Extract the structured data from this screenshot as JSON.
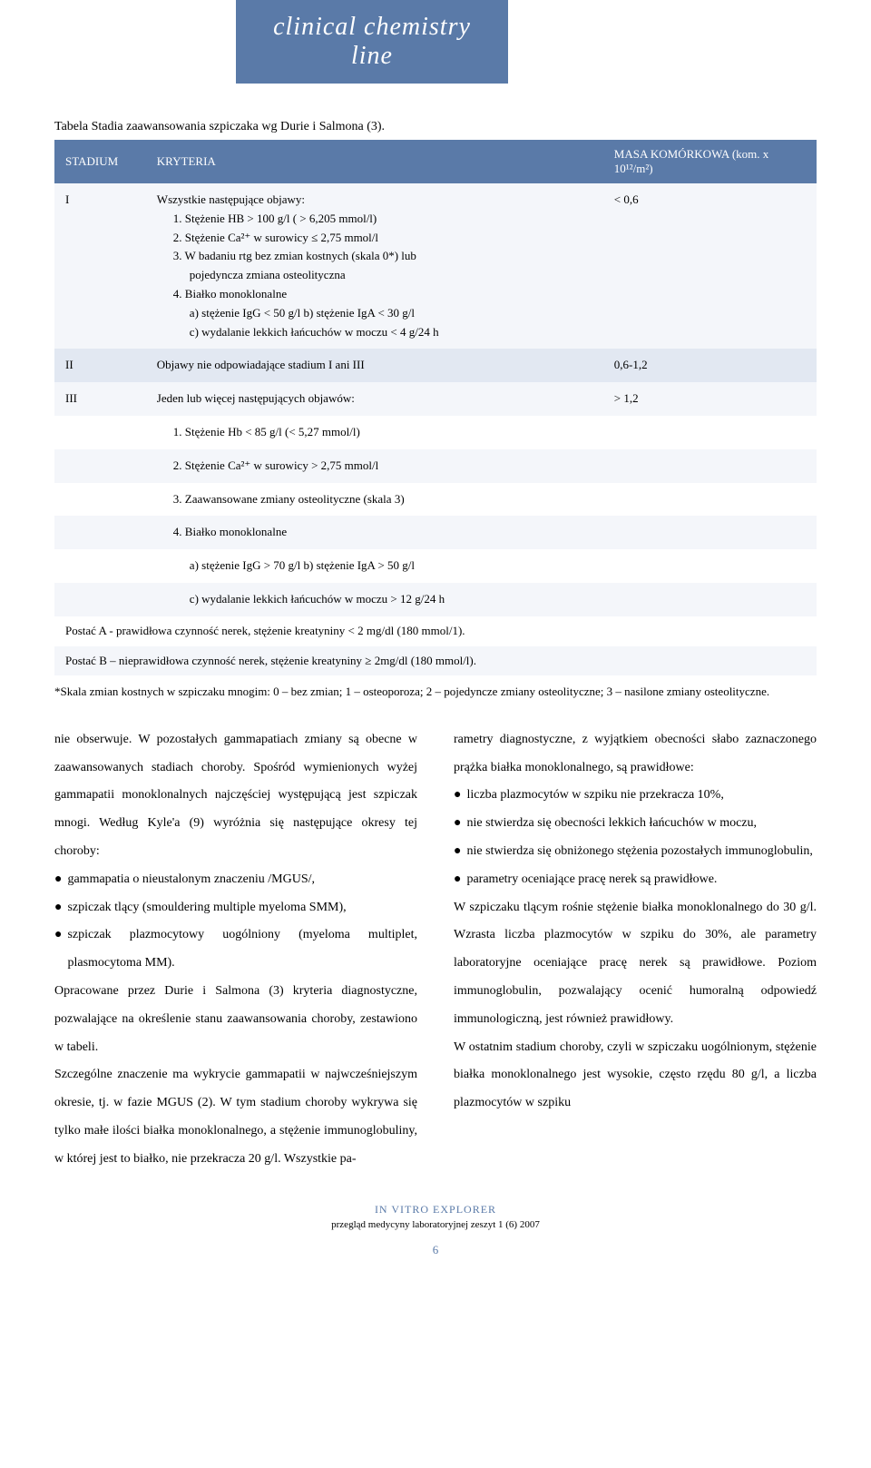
{
  "banner": "clinical chemistry line",
  "tableCaption": "Tabela Stadia zaawansowania szpiczaka wg Durie i Salmona (3).",
  "columns": {
    "c1": "STADIUM",
    "c2": "KRYTERIA",
    "c3": "MASA KOMÓRKOWA (kom. x 10¹²/m²)"
  },
  "r1": {
    "stadium": "I",
    "intro": "Wszystkie następujące objawy:",
    "l1": "1. Stężenie HB > 100 g/l ( > 6,205 mmol/l)",
    "l2": "2. Stężenie Ca²⁺ w surowicy ≤ 2,75 mmol/l",
    "l3": "3. W badaniu rtg bez zmian kostnych (skala 0*) lub",
    "l3b": "pojedyncza zmiana osteolityczna",
    "l4": "4. Białko monoklonalne",
    "l4a": "a) stężenie IgG < 50 g/l          b) stężenie IgA < 30 g/l",
    "l4c": "c) wydalanie lekkich łańcuchów w moczu < 4 g/24 h",
    "mass": "< 0,6"
  },
  "r2": {
    "stadium": "II",
    "kryt": "Objawy nie odpowiadające stadium I ani III",
    "mass": "0,6-1,2"
  },
  "r3": {
    "stadium": "III",
    "intro": "Jeden lub więcej następujących objawów:",
    "l1": "1. Stężenie Hb < 85 g/l (< 5,27 mmol/l)",
    "l2": "2. Stężenie Ca²⁺ w surowicy > 2,75 mmol/l",
    "l3": "3. Zaawansowane zmiany osteolityczne (skala 3)",
    "l4": "4. Białko monoklonalne",
    "l4a": "a) stężenie IgG > 70 g/l          b) stężenie IgA > 50 g/l",
    "l4c": "c) wydalanie lekkich łańcuchów w moczu > 12 g/24 h",
    "mass": "> 1,2"
  },
  "postA": "Postać A - prawidłowa czynność nerek, stężenie kreatyniny < 2 mg/dl (180 mmol/1).",
  "postB": "Postać B – nieprawidłowa czynność nerek, stężenie kreatyniny ≥ 2mg/dl (180 mmol/l).",
  "footnote": "*Skala zmian kostnych w szpiczaku mnogim: 0 – bez zmian; 1 – osteoporoza; 2 – pojedyncze zmiany osteolityczne; 3 – nasilone zmiany osteolityczne.",
  "left": {
    "p1a": "nie obserwuje. W pozostałych gammapatiach zmiany są obecne w zaawansowanych stadiach choroby.",
    "p1b": "Spośród wymienionych wyżej gammapatii monoklonalnych najczęściej występującą jest szpiczak mnogi. Według Kyle'a (9) wyróżnia się następujące okresy tej choroby:",
    "b1": "gammapatia o nieustalonym znaczeniu /MGUS/,",
    "b2": "szpiczak tlący (smouldering multiple myeloma SMM),",
    "b3": "szpiczak plazmocytowy uogólniony (myeloma multiplet, plasmocytoma MM).",
    "p2": "Opracowane przez Durie i Salmona (3) kryteria diagnostyczne, pozwalające na określenie stanu zaawansowania choroby, zestawiono w tabeli.",
    "p3": "Szczególne znaczenie ma wykrycie gammapatii w najwcześniejszym okresie, tj. w fazie MGUS (2). W tym stadium choroby wykrywa się tylko małe ilości białka monoklonalnego, a stężenie immunoglobuliny, w której jest to białko, nie przekracza 20 g/l. Wszystkie pa-"
  },
  "right": {
    "p1": "rametry diagnostyczne, z wyjątkiem obecności słabo zaznaczonego prążka białka monoklonalnego, są prawidłowe:",
    "b1": "liczba plazmocytów w szpiku nie przekracza 10%,",
    "b2": "nie stwierdza się obecności lekkich łańcuchów w moczu,",
    "b3": "nie stwierdza się obniżonego stężenia pozostałych immunoglobulin,",
    "b4": "parametry oceniające pracę nerek są prawidłowe.",
    "p2": "W szpiczaku tlącym rośnie stężenie białka monoklonalnego do 30 g/l. Wzrasta liczba plazmocytów w szpiku do 30%, ale parametry laboratoryjne oceniające pracę nerek są prawidłowe. Poziom immunoglobulin, pozwalający ocenić humoralną odpowiedź immunologiczną, jest również prawidłowy.",
    "p3": "W ostatnim stadium choroby, czyli w szpiczaku uogólnionym, stężenie białka monoklonalnego jest wysokie, często rzędu 80 g/l, a liczba plazmocytów w szpiku"
  },
  "footer": {
    "title": "IN VITRO EXPLORER",
    "sub": "przegląd medycyny laboratoryjnej zeszyt 1 (6) 2007",
    "page": "6"
  },
  "style": {
    "bannerBg": "#5a7aa8",
    "headerBg": "#5a7aa8",
    "rowLight": "#f4f6fa",
    "rowMed": "#e2e8f2",
    "textColor": "#000000"
  }
}
